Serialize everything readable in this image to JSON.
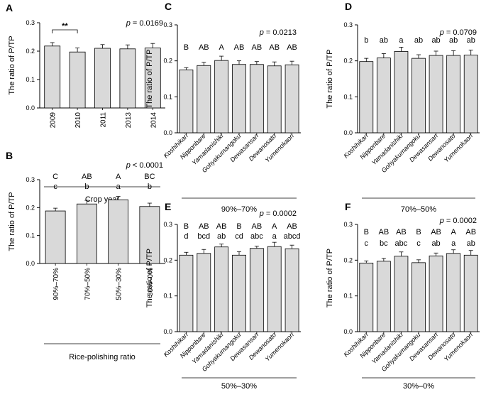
{
  "chart_data": [
    {
      "panel": "A",
      "type": "bar",
      "ylabel": "The ratio of P/TP",
      "ylim": [
        0,
        0.3
      ],
      "yticks": [
        "0.0",
        "0.1",
        "0.2",
        "0.3"
      ],
      "pvalue_label": "p",
      "pvalue_text": " = 0.0169",
      "categories": [
        "2009",
        "2010",
        "2011",
        "2013",
        "2014"
      ],
      "values": [
        0.218,
        0.197,
        0.21,
        0.208,
        0.211
      ],
      "errors": [
        0.012,
        0.014,
        0.013,
        0.014,
        0.016
      ],
      "letters_top": [],
      "letters_bottom": [],
      "sig_bracket": {
        "from": 0,
        "to": 1,
        "label": "**"
      },
      "xlabel": "Crop year",
      "italic_x": false,
      "rotate_x": -90
    },
    {
      "panel": "B",
      "type": "bar",
      "ylabel": "The ratio of P/TP",
      "ylim": [
        0,
        0.3
      ],
      "yticks": [
        "0.0",
        "0.1",
        "0.2",
        "0.3"
      ],
      "pvalue_label": "p",
      "pvalue_text": " < 0.0001",
      "categories": [
        "90%–70%",
        "70%–50%",
        "50%–30%",
        "30%–0%"
      ],
      "values": [
        0.188,
        0.213,
        0.228,
        0.204
      ],
      "errors": [
        0.01,
        0.013,
        0.012,
        0.012
      ],
      "letters_top": [
        "C",
        "AB",
        "A",
        "BC"
      ],
      "letters_bottom": [
        "c",
        "b",
        "a",
        "b"
      ],
      "xlabel": "Rice-polishing ratio",
      "italic_x": false,
      "rotate_x": -90
    },
    {
      "panel": "C",
      "type": "bar",
      "ylabel": "The ratio of P/TP",
      "ylim": [
        0,
        0.3
      ],
      "yticks": [
        "0.0",
        "0.1",
        "0.2",
        "0.3"
      ],
      "pvalue_label": "p",
      "pvalue_text": " = 0.0213",
      "categories": [
        "Koshihikari",
        "Nipponbare",
        "Yamadanishiki",
        "Gohyakumangoku",
        "Dewasansan",
        "Dewanosato",
        "Yumenokaori"
      ],
      "values": [
        0.175,
        0.187,
        0.201,
        0.19,
        0.19,
        0.186,
        0.189
      ],
      "errors": [
        0.006,
        0.009,
        0.012,
        0.01,
        0.008,
        0.011,
        0.01
      ],
      "letters_top": [
        "B",
        "AB",
        "A",
        "AB",
        "AB",
        "AB",
        "AB"
      ],
      "letters_bottom": [],
      "xlabel": "90%–70%",
      "italic_x": true,
      "rotate_x": -45
    },
    {
      "panel": "D",
      "type": "bar",
      "ylabel": "The ratio of P/TP",
      "ylim": [
        0,
        0.3
      ],
      "yticks": [
        "0.0",
        "0.1",
        "0.2",
        "0.3"
      ],
      "pvalue_label": "p",
      "pvalue_text": " = 0.0709",
      "categories": [
        "Koshihikari",
        "Nipponbare",
        "Yamadanishiki",
        "Gohyakumangoku",
        "Dewasansan",
        "Dewanosato",
        "Yumenokaori"
      ],
      "values": [
        0.198,
        0.208,
        0.226,
        0.207,
        0.215,
        0.215,
        0.216
      ],
      "errors": [
        0.009,
        0.012,
        0.012,
        0.01,
        0.012,
        0.013,
        0.014
      ],
      "letters_top": [
        "b",
        "ab",
        "a",
        "ab",
        "ab",
        "ab",
        "ab"
      ],
      "letters_bottom": [],
      "xlabel": "70%–50%",
      "italic_x": true,
      "rotate_x": -45
    },
    {
      "panel": "E",
      "type": "bar",
      "ylabel": "The ratio of P/TP",
      "ylim": [
        0,
        0.3
      ],
      "yticks": [
        "0.0",
        "0.1",
        "0.2",
        "0.3"
      ],
      "pvalue_label": "p",
      "pvalue_text": " = 0.0002",
      "categories": [
        "Koshihikari",
        "Nipponbare",
        "Yamadanishiki",
        "Gohyakumangoku",
        "Dewasansan",
        "Dewanosato",
        "Yumenokaori"
      ],
      "values": [
        0.214,
        0.219,
        0.237,
        0.214,
        0.233,
        0.238,
        0.232
      ],
      "errors": [
        0.008,
        0.011,
        0.008,
        0.01,
        0.006,
        0.012,
        0.01
      ],
      "letters_top": [
        "B",
        "AB",
        "AB",
        "B",
        "AB",
        "A",
        "AB"
      ],
      "letters_bottom": [
        "d",
        "bcd",
        "ab",
        "cd",
        "abc",
        "a",
        "abcd"
      ],
      "xlabel": "50%–30%",
      "italic_x": true,
      "rotate_x": -45
    },
    {
      "panel": "F",
      "type": "bar",
      "ylabel": "The ratio of P/TP",
      "ylim": [
        0,
        0.3
      ],
      "yticks": [
        "0.0",
        "0.1",
        "0.2",
        "0.3"
      ],
      "pvalue_label": "p",
      "pvalue_text": " = 0.0002",
      "categories": [
        "Koshihikari",
        "Nipponbare",
        "Yamadanishiki",
        "Gohyakumangoku",
        "Dewasansan",
        "Dewanosato",
        "Yumenokaori"
      ],
      "values": [
        0.192,
        0.197,
        0.211,
        0.193,
        0.212,
        0.219,
        0.214
      ],
      "errors": [
        0.006,
        0.008,
        0.012,
        0.008,
        0.008,
        0.01,
        0.013
      ],
      "letters_top": [
        "B",
        "AB",
        "AB",
        "B",
        "AB",
        "A",
        "AB"
      ],
      "letters_bottom": [
        "c",
        "bc",
        "abc",
        "c",
        "ab",
        "a",
        "ab"
      ],
      "xlabel": "30%–0%",
      "italic_x": true,
      "rotate_x": -45
    }
  ]
}
